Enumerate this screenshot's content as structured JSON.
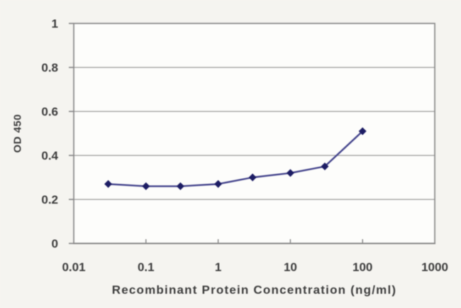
{
  "chart_data": {
    "type": "line",
    "xlabel": "Recombinant Protein Concentration (ng/ml)",
    "ylabel": "OD 450",
    "x_scale": "log",
    "xlim": [
      0.01,
      1000
    ],
    "ylim": [
      0,
      1
    ],
    "x_tick_values": [
      0.01,
      0.1,
      1,
      10,
      100,
      1000
    ],
    "x_tick_labels": [
      "0.01",
      "0.1",
      "1",
      "10",
      "100",
      "1000"
    ],
    "y_tick_values": [
      0,
      0.2,
      0.4,
      0.6,
      0.8,
      1
    ],
    "y_tick_labels": [
      "0",
      "0.2",
      "0.4",
      "0.6",
      "0.8",
      "1"
    ],
    "grid": "horizontal",
    "legend": "none",
    "series": [
      {
        "name": "OD450",
        "marker": "diamond",
        "x": [
          0.03,
          0.1,
          0.3,
          1,
          3,
          10,
          30,
          100
        ],
        "y": [
          0.27,
          0.26,
          0.26,
          0.27,
          0.3,
          0.32,
          0.35,
          0.51
        ]
      }
    ]
  },
  "colors": {
    "background": "#f5f4f0",
    "plot_background": "#fdfdfb",
    "axis": "#8a8a8a",
    "grid": "#9a9a9a",
    "text": "#3d3d3d",
    "line": "#44448c",
    "marker": "#1d1d64"
  }
}
